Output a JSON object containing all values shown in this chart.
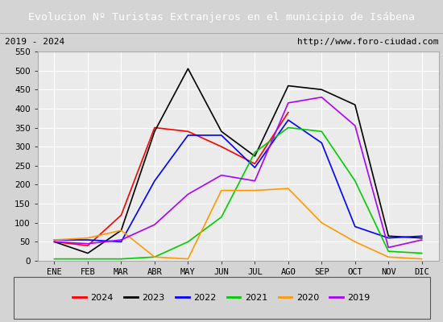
{
  "title": "Evolucion Nº Turistas Extranjeros en el municipio de Isábena",
  "subtitle_left": "2019 - 2024",
  "subtitle_right": "http://www.foro-ciudad.com",
  "title_bg_color": "#4d7ebf",
  "title_font_color": "#ffffff",
  "ylim": [
    0,
    550
  ],
  "yticks": [
    0,
    50,
    100,
    150,
    200,
    250,
    300,
    350,
    400,
    450,
    500,
    550
  ],
  "months": [
    "ENE",
    "FEB",
    "MAR",
    "ABR",
    "MAY",
    "JUN",
    "JUL",
    "AGO",
    "SEP",
    "OCT",
    "NOV",
    "DIC"
  ],
  "series": {
    "2024": {
      "color": "#ff0000",
      "data": [
        50,
        40,
        120,
        350,
        340,
        300,
        255,
        390,
        null,
        null,
        null,
        null
      ]
    },
    "2023": {
      "color": "#000000",
      "data": [
        50,
        20,
        80,
        340,
        505,
        340,
        275,
        460,
        450,
        410,
        65,
        60
      ]
    },
    "2022": {
      "color": "#0000ff",
      "data": [
        55,
        55,
        50,
        210,
        330,
        330,
        245,
        370,
        310,
        90,
        60,
        65
      ]
    },
    "2021": {
      "color": "#00cc00",
      "data": [
        5,
        5,
        5,
        10,
        50,
        115,
        285,
        350,
        340,
        210,
        25,
        20
      ]
    },
    "2020": {
      "color": "#ff9900",
      "data": [
        55,
        60,
        80,
        10,
        5,
        185,
        185,
        190,
        100,
        50,
        10,
        5
      ]
    },
    "2019": {
      "color": "#aa00ff",
      "data": [
        50,
        45,
        55,
        95,
        175,
        225,
        210,
        415,
        430,
        355,
        35,
        55
      ]
    }
  },
  "legend_order": [
    "2024",
    "2023",
    "2022",
    "2021",
    "2020",
    "2019"
  ],
  "plot_bg_color": "#ebebeb",
  "fig_bg_color": "#d4d4d4",
  "grid_color": "#ffffff",
  "subtitle_bg": "#ffffff",
  "subtitle_border": "#aaaaaa"
}
